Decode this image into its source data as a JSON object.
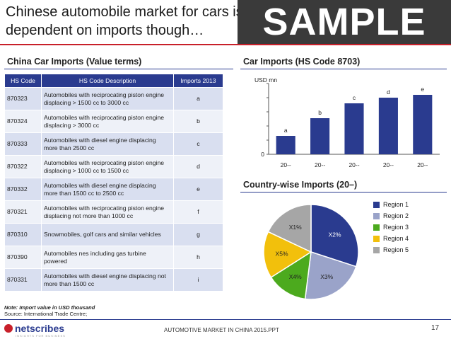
{
  "header": {
    "title": "Chinese automobile market for cars is dependent on imports though…",
    "watermark": "SAMPLE"
  },
  "left": {
    "heading": "China Car Imports (Value terms)",
    "columns": [
      "HS Code",
      "HS Code Description",
      "Imports 2013"
    ],
    "rows": [
      {
        "code": "870323",
        "desc": "Automobiles with reciprocating piston engine displacing > 1500 cc to 3000 cc",
        "value": "a"
      },
      {
        "code": "870324",
        "desc": "Automobiles with reciprocating piston engine displacing > 3000 cc",
        "value": "b"
      },
      {
        "code": "870333",
        "desc": "Automobiles with diesel engine displacing more than 2500 cc",
        "value": "c"
      },
      {
        "code": "870322",
        "desc": "Automobiles with reciprocating piston engine displacing > 1000 cc to 1500 cc",
        "value": "d"
      },
      {
        "code": "870332",
        "desc": "Automobiles with diesel engine displacing more than 1500 cc to 2500 cc",
        "value": "e"
      },
      {
        "code": "870321",
        "desc": "Automobiles with reciprocating piston engine displacing not more than 1000 cc",
        "value": "f"
      },
      {
        "code": "870310",
        "desc": "Snowmobiles, golf cars and similar vehicles",
        "value": "g"
      },
      {
        "code": "870390",
        "desc": "Automobiles nes including gas turbine powered",
        "value": "h"
      },
      {
        "code": "870331",
        "desc": "Automobiles with diesel engine displacing not more than 1500 cc",
        "value": "i"
      }
    ],
    "note": "Note: Import value in USD thousand",
    "source": "Source: International Trade Centre;"
  },
  "bar_heading": "Car Imports (HS Code 8703)",
  "pie_heading": "Country-wise Imports (20–)",
  "chart_data": [
    {
      "type": "bar",
      "title": "Car Imports (HS Code 8703)",
      "ylabel": "USD mn",
      "categories": [
        "20--",
        "20--",
        "20--",
        "20--",
        "20--"
      ],
      "values": [
        26,
        51,
        72,
        80,
        84
      ],
      "data_labels": [
        "a",
        "b",
        "c",
        "d",
        "e"
      ],
      "yticks": [
        "0"
      ],
      "ylim": [
        0,
        100
      ],
      "color": "#2a3b8f"
    },
    {
      "type": "pie",
      "title": "Country-wise Imports (20–)",
      "labels": [
        "Region 1",
        "Region 2",
        "Region 3",
        "Region 4",
        "Region 5"
      ],
      "slice_labels": [
        "X2%",
        "X3%",
        "X4%",
        "X5%",
        "X1%"
      ],
      "values": [
        30,
        22,
        14,
        16,
        18
      ],
      "colors": [
        "#2a3b8f",
        "#9aa3c9",
        "#4caa1e",
        "#f2c00c",
        "#a6a6a6"
      ],
      "legend": "right"
    }
  ],
  "footer": {
    "company": "netscribes",
    "tagline": "INSIGHTS FOR BUSINESS",
    "text": "AUTOMOTIVE MARKET IN CHINA 2015.PPT",
    "page": "17"
  }
}
